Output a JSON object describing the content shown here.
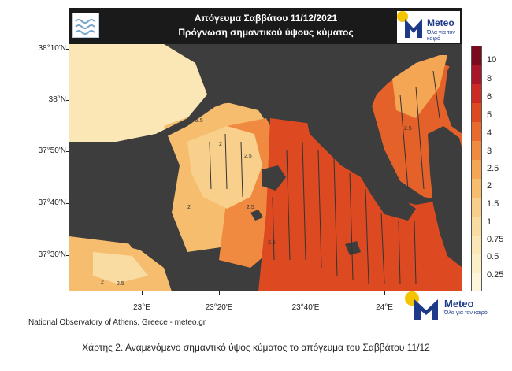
{
  "header": {
    "title_line1": "Απόγευμα Σαββάτου 11/12/2021",
    "title_line2": "Πρόγνωση σημαντικού ύψους κύματος"
  },
  "brand": {
    "name": "Meteo",
    "tagline": "Όλα για τον καιρό"
  },
  "map": {
    "latitude_labels": [
      "38°10'N",
      "38°N",
      "37°50'N",
      "37°40'N",
      "37°30'N"
    ],
    "longitude_labels": [
      "23°E",
      "23°20'E",
      "23°40'E",
      "24°E"
    ],
    "contour_labels": [
      "2.5",
      "2",
      "2.5",
      "2.5",
      "2",
      "2.5",
      "2",
      "2.5",
      "2.5"
    ],
    "colors": {
      "land": "#3d3d3d",
      "lightest": "#fbe8b4",
      "light": "#f8d08c",
      "mid": "#f4b066",
      "orange": "#ee8a3e",
      "deep_orange": "#e4612a",
      "red": "#d8441f"
    }
  },
  "colorbar": {
    "labels": [
      "10",
      "8",
      "6",
      "5",
      "4",
      "3",
      "2.5",
      "2",
      "1.5",
      "1",
      "0.75",
      "0.5",
      "0.25"
    ],
    "colors": [
      "#7a0a1e",
      "#a8162a",
      "#cc2a22",
      "#dd4a22",
      "#e86a2e",
      "#f08a40",
      "#f4a654",
      "#f6bd6e",
      "#f8cf8a",
      "#f9dca2",
      "#fbe6b6",
      "#fcefc8",
      "#fdf6dc"
    ]
  },
  "source_credit": "National Observatory of Athens, Greece - meteo.gr",
  "caption": "Χάρτης 2. Αναμενόμενο σημαντικό ύψος κύματος το απόγευμα του Σαββάτου 11/12"
}
